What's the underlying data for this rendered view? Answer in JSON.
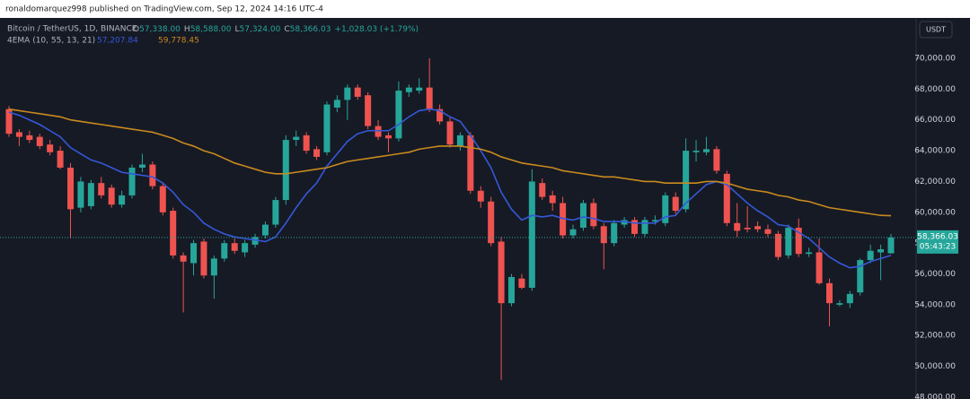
{
  "header": "ronaldomarquez998 published on TradingView.com, Sep 12, 2024 14:16 UTC-4",
  "chart_data": {
    "type": "candlestick",
    "symbol": "Bitcoin / TetherUS, 1D, BINANCE",
    "ohlc_legend": [
      {
        "letter": "O",
        "text": "57,338.00"
      },
      {
        "letter": "H",
        "text": "58,588.00"
      },
      {
        "letter": "L",
        "text": "57,324.00"
      },
      {
        "letter": "C",
        "text": "58,366.03"
      },
      {
        "letter": "",
        "text": "+1,028.03 (+1.79%)"
      }
    ],
    "indicator": "4EMA (10, 55, 13, 21)",
    "currency": "USDT",
    "up_color": "#26a69a",
    "down_color": "#ef5350",
    "candles": [
      [
        66700,
        66900,
        64900,
        65100
      ],
      [
        65200,
        65400,
        64300,
        64900
      ],
      [
        65000,
        65300,
        64500,
        64700
      ],
      [
        64900,
        65100,
        64100,
        64300
      ],
      [
        64400,
        64700,
        63700,
        63900
      ],
      [
        64000,
        64300,
        62800,
        62900
      ],
      [
        62900,
        63200,
        58300,
        60200
      ],
      [
        60300,
        62300,
        60000,
        62000
      ],
      [
        60400,
        62100,
        60200,
        61900
      ],
      [
        61900,
        62300,
        60900,
        61100
      ],
      [
        61600,
        61800,
        60300,
        60500
      ],
      [
        60500,
        61400,
        60300,
        61100
      ],
      [
        61100,
        63100,
        60900,
        62900
      ],
      [
        62900,
        63800,
        62600,
        63100
      ],
      [
        63100,
        63300,
        61500,
        61700
      ],
      [
        61700,
        61900,
        59800,
        60000
      ],
      [
        60100,
        60300,
        57000,
        57200
      ],
      [
        57200,
        57400,
        53500,
        56800
      ],
      [
        56700,
        58200,
        55900,
        58000
      ],
      [
        58100,
        58300,
        55700,
        55900
      ],
      [
        55900,
        57200,
        54400,
        57000
      ],
      [
        57000,
        58200,
        56800,
        58000
      ],
      [
        58000,
        58300,
        57300,
        57500
      ],
      [
        57400,
        58200,
        57100,
        58000
      ],
      [
        57900,
        58600,
        57700,
        58400
      ],
      [
        58500,
        59400,
        58300,
        59200
      ],
      [
        59200,
        61000,
        59000,
        60800
      ],
      [
        60800,
        65000,
        60500,
        64700
      ],
      [
        64700,
        65300,
        64300,
        64900
      ],
      [
        65000,
        65200,
        63800,
        64000
      ],
      [
        64100,
        64300,
        63400,
        63600
      ],
      [
        63900,
        67200,
        63700,
        67000
      ],
      [
        66800,
        67600,
        66500,
        67300
      ],
      [
        67300,
        68300,
        66000,
        68100
      ],
      [
        68100,
        68300,
        67300,
        67500
      ],
      [
        67600,
        67800,
        65400,
        65600
      ],
      [
        65600,
        66000,
        64700,
        64900
      ],
      [
        65000,
        65200,
        63900,
        64800
      ],
      [
        64800,
        68500,
        64600,
        67900
      ],
      [
        67800,
        68300,
        67500,
        68100
      ],
      [
        67900,
        68700,
        67700,
        68100
      ],
      [
        68100,
        70000,
        66500,
        66700
      ],
      [
        66700,
        67000,
        65700,
        65900
      ],
      [
        65900,
        66200,
        64200,
        64400
      ],
      [
        64300,
        65200,
        64000,
        65000
      ],
      [
        65000,
        65200,
        61200,
        61400
      ],
      [
        61400,
        61700,
        60300,
        60700
      ],
      [
        60700,
        61000,
        57800,
        58000
      ],
      [
        58100,
        58400,
        49100,
        54100
      ],
      [
        54100,
        56000,
        53900,
        55800
      ],
      [
        55700,
        56000,
        55000,
        55100
      ],
      [
        55100,
        62800,
        54900,
        62000
      ],
      [
        61900,
        62200,
        60800,
        61000
      ],
      [
        61100,
        61400,
        60100,
        60600
      ],
      [
        60600,
        61000,
        58300,
        58500
      ],
      [
        58500,
        59200,
        58300,
        58900
      ],
      [
        59000,
        60800,
        58800,
        60600
      ],
      [
        60600,
        60900,
        58900,
        59100
      ],
      [
        59100,
        59300,
        56300,
        58000
      ],
      [
        58000,
        59500,
        57800,
        59300
      ],
      [
        59200,
        59700,
        59000,
        59500
      ],
      [
        59500,
        59700,
        58400,
        58600
      ],
      [
        58600,
        59700,
        58400,
        59500
      ],
      [
        59400,
        59800,
        59200,
        59500
      ],
      [
        59300,
        61300,
        59100,
        61100
      ],
      [
        61000,
        61300,
        59900,
        60100
      ],
      [
        60200,
        64800,
        60000,
        64000
      ],
      [
        63900,
        64700,
        63300,
        64000
      ],
      [
        63900,
        64900,
        63700,
        64100
      ],
      [
        64100,
        64300,
        62500,
        62700
      ],
      [
        62500,
        62700,
        59100,
        59300
      ],
      [
        59300,
        60600,
        58400,
        58800
      ],
      [
        59000,
        60400,
        58700,
        58900
      ],
      [
        59100,
        59400,
        58700,
        58900
      ],
      [
        58900,
        59200,
        58400,
        58600
      ],
      [
        58600,
        58800,
        56900,
        57100
      ],
      [
        57200,
        59200,
        57000,
        59000
      ],
      [
        59000,
        59600,
        57100,
        57300
      ],
      [
        57300,
        57700,
        57100,
        57400
      ],
      [
        57400,
        58300,
        55300,
        55400
      ],
      [
        55400,
        55700,
        52600,
        54100
      ],
      [
        54000,
        54300,
        53900,
        54100
      ],
      [
        54100,
        54900,
        53800,
        54700
      ],
      [
        54800,
        57000,
        54600,
        56900
      ],
      [
        56900,
        57900,
        56700,
        57500
      ],
      [
        57400,
        57900,
        55600,
        57600
      ],
      [
        57338,
        58588,
        57324,
        58366.03
      ]
    ],
    "series": [
      {
        "color": "#3558d8",
        "value_label": "57,207.84",
        "values": [
          66500,
          66300,
          66000,
          65700,
          65300,
          64900,
          64200,
          63800,
          63400,
          63200,
          62900,
          62600,
          62500,
          62400,
          62300,
          61900,
          61300,
          60500,
          60000,
          59300,
          58900,
          58600,
          58400,
          58300,
          58200,
          58100,
          58400,
          59300,
          60300,
          61200,
          61900,
          63000,
          63800,
          64600,
          65100,
          65300,
          65300,
          65300,
          65700,
          66200,
          66600,
          66700,
          66600,
          66200,
          65900,
          65000,
          64000,
          62900,
          61300,
          60200,
          59500,
          59800,
          59700,
          59800,
          59600,
          59500,
          59700,
          59600,
          59400,
          59400,
          59400,
          59300,
          59300,
          59300,
          59700,
          59800,
          60600,
          61200,
          61800,
          62000,
          61800,
          61200,
          60600,
          60100,
          59700,
          59200,
          59100,
          58700,
          58300,
          57700,
          57100,
          56700,
          56400,
          56500,
          56800,
          57000,
          57207.84
        ]
      },
      {
        "color": "#c98a1e",
        "value_label": "59,778.45",
        "values": [
          66700,
          66600,
          66500,
          66400,
          66300,
          66200,
          66000,
          65900,
          65800,
          65700,
          65600,
          65500,
          65400,
          65300,
          65200,
          65000,
          64800,
          64500,
          64300,
          64000,
          63800,
          63500,
          63200,
          63000,
          62800,
          62600,
          62500,
          62500,
          62600,
          62700,
          62800,
          62900,
          63100,
          63300,
          63400,
          63500,
          63600,
          63700,
          63800,
          63900,
          64100,
          64200,
          64300,
          64300,
          64300,
          64200,
          64100,
          63900,
          63600,
          63400,
          63200,
          63100,
          63000,
          62900,
          62700,
          62600,
          62500,
          62400,
          62300,
          62300,
          62200,
          62100,
          62000,
          62000,
          61900,
          61900,
          61900,
          61900,
          62000,
          62000,
          61900,
          61700,
          61500,
          61400,
          61300,
          61100,
          61000,
          60800,
          60700,
          60500,
          60300,
          60200,
          60100,
          60000,
          59900,
          59800,
          59778.45
        ]
      }
    ],
    "last_price": {
      "value": 58366.03,
      "label": "58,366.03"
    },
    "countdown": "05:43:23",
    "ylim": [
      47880,
      72620
    ],
    "yticks": [
      {
        "value": 48000,
        "label": "48,000.00"
      },
      {
        "value": 50000,
        "label": "50,000.00"
      },
      {
        "value": 52000,
        "label": "52,000.00"
      },
      {
        "value": 54000,
        "label": "54,000.00"
      },
      {
        "value": 56000,
        "label": "56,000.00"
      },
      {
        "value": 58000,
        "label": "58,000.00"
      },
      {
        "value": 60000,
        "label": "60,000.00"
      },
      {
        "value": 62000,
        "label": "62,000.00"
      },
      {
        "value": 64000,
        "label": "64,000.00"
      },
      {
        "value": 66000,
        "label": "66,000.00"
      },
      {
        "value": 68000,
        "label": "68,000.00"
      },
      {
        "value": 70000,
        "label": "70,000.00"
      }
    ],
    "grid": false
  }
}
